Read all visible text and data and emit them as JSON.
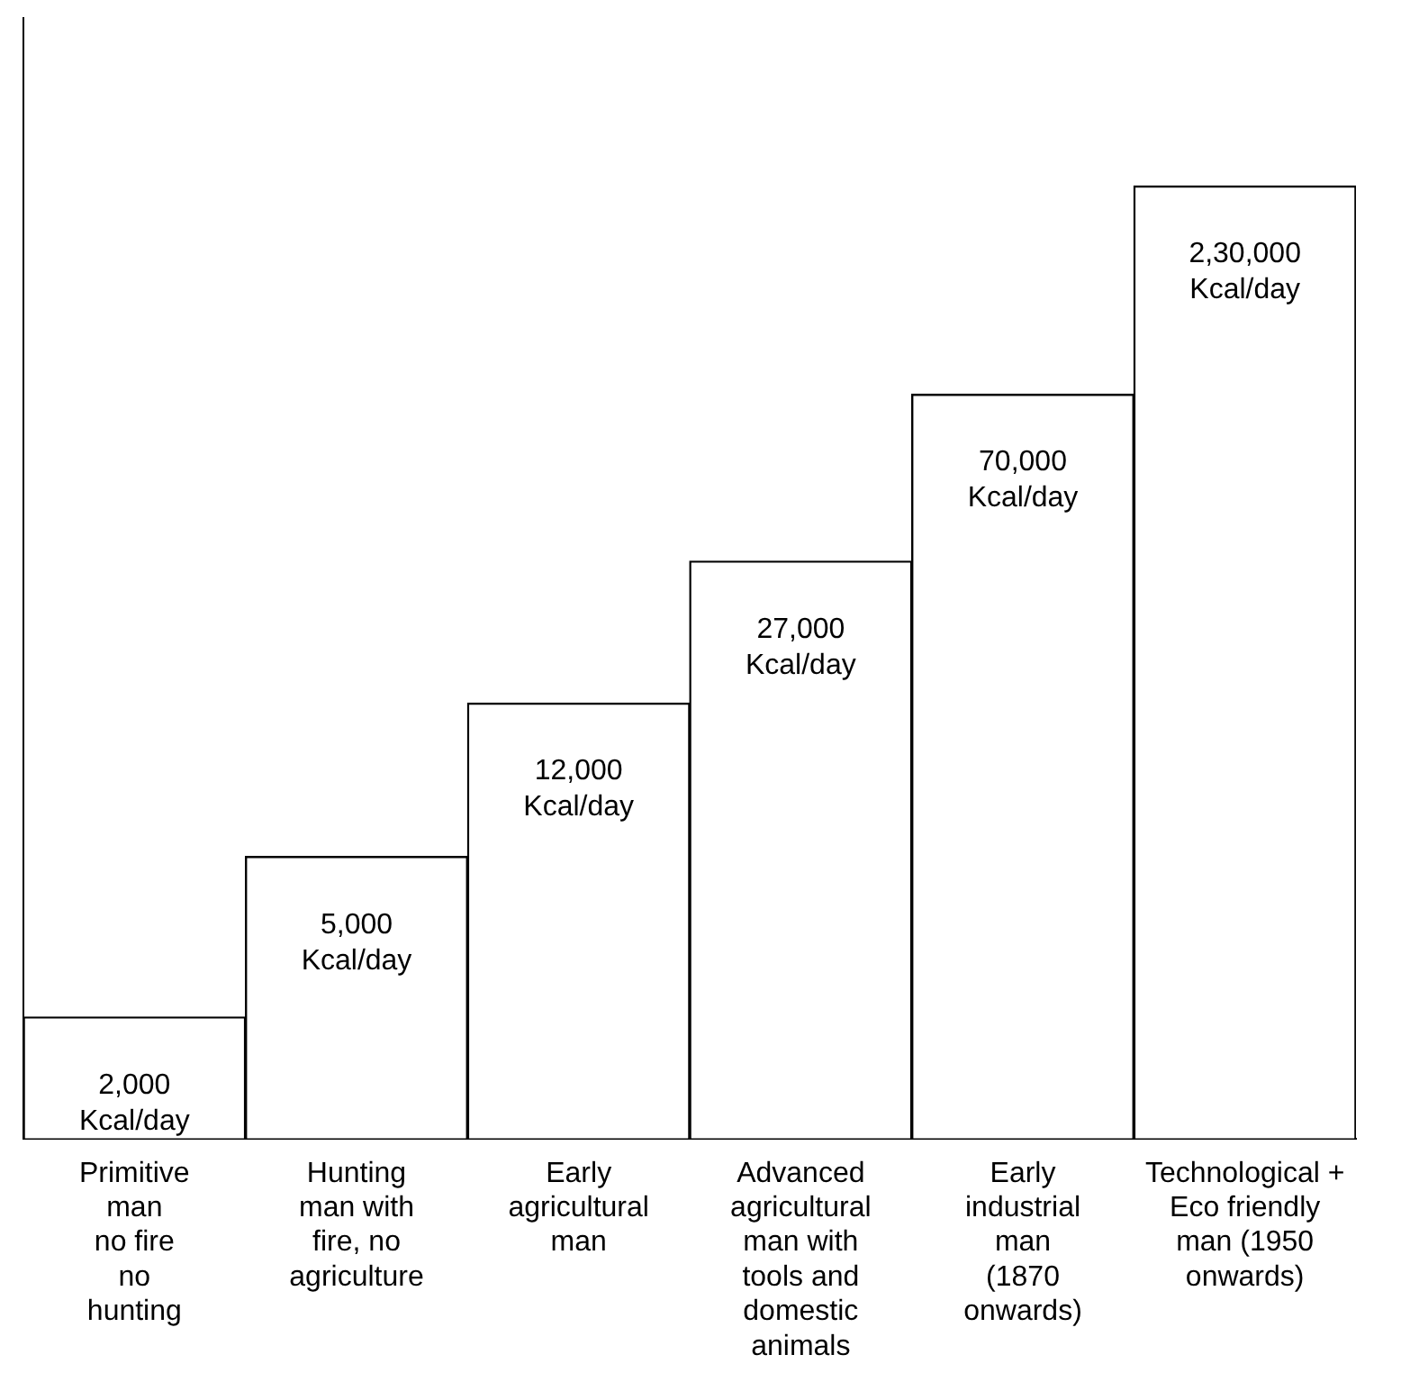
{
  "chart_data": {
    "type": "bar",
    "categories": [
      "Primitive\nman\nno fire\nno\nhunting",
      "Hunting\nman with\nfire, no\nagriculture",
      "Early\nagricultural\nman",
      "Advanced\nagricultural\nman with\ntools and\ndomestic\nanimals",
      "Early\nindustrial\nman\n(1870\nonwards)",
      "Technological +\nEco friendly\nman (1950\nonwards)"
    ],
    "values": [
      2000,
      5000,
      12000,
      27000,
      70000,
      230000
    ],
    "value_labels": [
      "2,000\nKcal/day",
      "5,000\nKcal/day",
      "12,000\nKcal/day",
      "27,000\nKcal/day",
      "70,000\nKcal/day",
      "2,30,000\nKcal/day"
    ],
    "color": "#ffffff",
    "log": true,
    "ylim": [
      1000,
      600000
    ],
    "tick_labels": "x",
    "grid": false,
    "legend": false
  }
}
